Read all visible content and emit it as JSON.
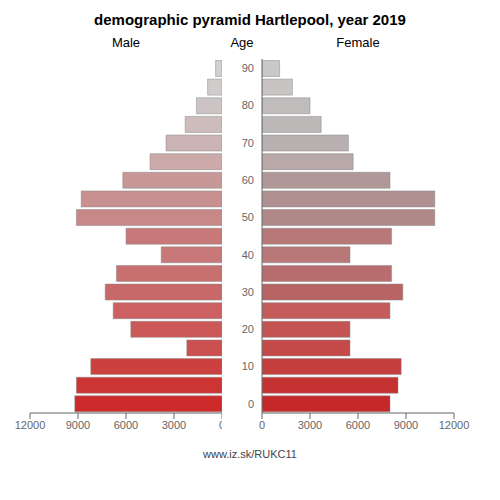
{
  "chart_data": {
    "type": "bar",
    "orientation": "horizontal",
    "title": "demographic pyramid Hartlepool, year 2019",
    "ylabel": "Age",
    "categories": [
      "0",
      null,
      "10",
      null,
      "20",
      null,
      "30",
      null,
      "40",
      null,
      "50",
      null,
      "60",
      null,
      "70",
      null,
      "80",
      null,
      "90"
    ],
    "series": [
      {
        "name": "Male",
        "values": [
          9200,
          9100,
          8200,
          2200,
          5700,
          6800,
          7300,
          6600,
          3800,
          6000,
          9100,
          8800,
          6200,
          4500,
          3500,
          2300,
          1600,
          900,
          400
        ],
        "colors": [
          "#cd2b2b",
          "#cd3535",
          "#cd4040",
          "#cd5050",
          "#cd5858",
          "#cd6060",
          "#c86868",
          "#c87070",
          "#c87878",
          "#c87878",
          "#c88888",
          "#c89090",
          "#c89898",
          "#ccaaaa",
          "#ccb4b4",
          "#ccbcbc",
          "#ccc4c4",
          "#d0cccc",
          "#d0d0d0"
        ]
      },
      {
        "name": "Female",
        "values": [
          8000,
          8500,
          8700,
          5500,
          5500,
          8000,
          8800,
          8100,
          5500,
          8100,
          10800,
          10800,
          8000,
          5700,
          5400,
          3700,
          3000,
          1900,
          1100
        ],
        "colors": [
          "#c42828",
          "#c43232",
          "#c43e3e",
          "#c44a4a",
          "#c45454",
          "#c45c5c",
          "#b86464",
          "#b86e6e",
          "#b87878",
          "#b87878",
          "#b08888",
          "#b09090",
          "#b09898",
          "#b8a8a8",
          "#b8b0b0",
          "#bcb8b8",
          "#c0bcbc",
          "#c8c4c4",
          "#c8c8c8"
        ]
      }
    ],
    "xlim": [
      0,
      12000
    ],
    "xticks": [
      0,
      3000,
      6000,
      9000,
      12000
    ],
    "grid": false,
    "annotations": [
      "www.iz.sk/RUKC11"
    ]
  }
}
